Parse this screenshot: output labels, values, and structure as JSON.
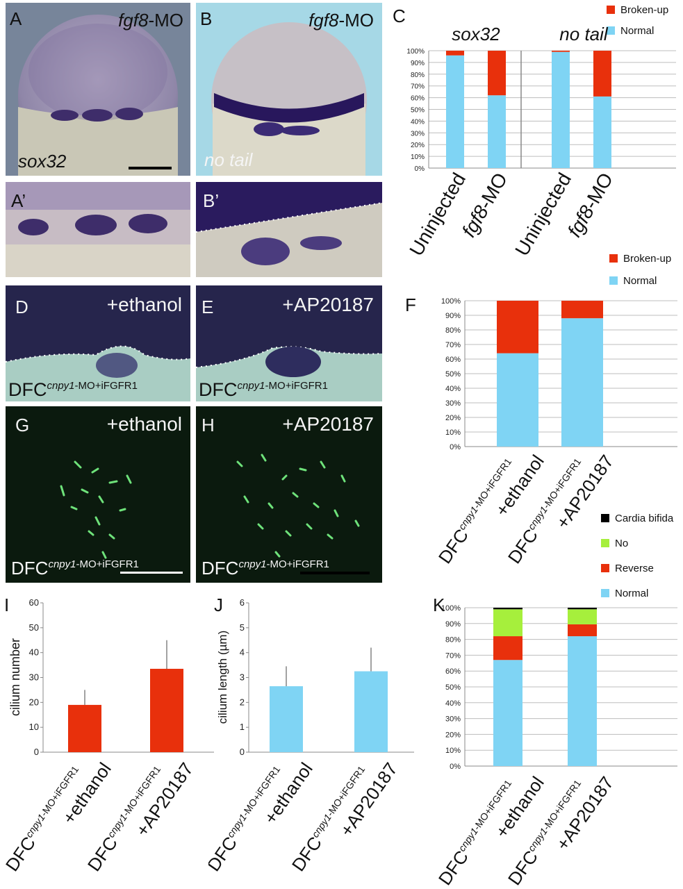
{
  "panels": {
    "A": {
      "label": "A",
      "gene_top": "fgf8",
      "suffix_top": "-MO",
      "gene_bottom": "sox32"
    },
    "B": {
      "label": "B",
      "gene_top": "fgf8",
      "suffix_top": "-MO",
      "gene_bottom": "no tail"
    },
    "A_prime": {
      "label": "A’"
    },
    "B_prime": {
      "label": "B’"
    },
    "D": {
      "label": "D",
      "treatment": "+ethanol",
      "dfc": "DFC",
      "dfc_sup": "cnpy1",
      "dfc_suffix": "-MO+iFGFR1"
    },
    "E": {
      "label": "E",
      "treatment": "+AP20187",
      "dfc": "DFC",
      "dfc_sup": "cnpy1",
      "dfc_suffix": "-MO+iFGFR1"
    },
    "G": {
      "label": "G",
      "treatment": "+ethanol",
      "dfc": "DFC",
      "dfc_sup": "cnpy1",
      "dfc_suffix": "-MO+iFGFR1"
    },
    "H": {
      "label": "H",
      "treatment": "+AP20187",
      "dfc": "DFC",
      "dfc_sup": "cnpy1",
      "dfc_suffix": "-MO+iFGFR1"
    }
  },
  "colors": {
    "red": "#e8300c",
    "blue": "#7fd4f4",
    "green": "#a6ef3c",
    "black": "#000000"
  },
  "chart_data": [
    {
      "panel": "C",
      "type": "bar",
      "stacked": true,
      "group_titles": [
        "sox32",
        "no tail"
      ],
      "categories": [
        "Uninjected",
        "fgf8-MO",
        "Uninjected",
        "fgf8-MO"
      ],
      "series": [
        {
          "name": "Normal",
          "color": "#7fd4f4",
          "values": [
            96,
            62,
            99,
            61
          ]
        },
        {
          "name": "Broken-up",
          "color": "#e8300c",
          "values": [
            4,
            38,
            1,
            39
          ]
        }
      ],
      "ylim": [
        0,
        100
      ],
      "yticks": [
        "0%",
        "10%",
        "20%",
        "30%",
        "40%",
        "50%",
        "60%",
        "70%",
        "80%",
        "90%",
        "100%"
      ],
      "legend_position": "top-right",
      "grid": true
    },
    {
      "panel": "F",
      "type": "bar",
      "stacked": true,
      "categories": [
        {
          "dfc": "DFC",
          "sup": "cnpy1-MO+iFGFR1",
          "treatment": "+ethanol"
        },
        {
          "dfc": "DFC",
          "sup": "cnpy1-MO+iFGFR1",
          "treatment": "+AP20187"
        }
      ],
      "series": [
        {
          "name": "Normal",
          "color": "#7fd4f4",
          "values": [
            64,
            88
          ]
        },
        {
          "name": "Broken-up",
          "color": "#e8300c",
          "values": [
            36,
            12
          ]
        }
      ],
      "ylim": [
        0,
        100
      ],
      "yticks": [
        "0%",
        "10%",
        "20%",
        "30%",
        "40%",
        "50%",
        "60%",
        "70%",
        "80%",
        "90%",
        "100%"
      ],
      "legend_position": "top-left",
      "grid": true
    },
    {
      "panel": "I",
      "type": "bar",
      "ylabel": "cilium number",
      "categories": [
        {
          "dfc": "DFC",
          "sup": "cnpy1-MO+iFGFR1",
          "treatment": "+ethanol"
        },
        {
          "dfc": "DFC",
          "sup": "cnpy1-MO+iFGFR1",
          "treatment": "+AP20187"
        }
      ],
      "values": [
        19,
        33.5
      ],
      "errors": [
        6,
        11.5
      ],
      "color": "#e8300c",
      "ylim": [
        0,
        60
      ],
      "yticks": [
        "0",
        "10",
        "20",
        "30",
        "40",
        "50",
        "60"
      ],
      "grid": false
    },
    {
      "panel": "J",
      "type": "bar",
      "ylabel": "cilium length (µm)",
      "categories": [
        {
          "dfc": "DFC",
          "sup": "cnpy1-MO+iFGFR1",
          "treatment": "+ethanol"
        },
        {
          "dfc": "DFC",
          "sup": "cnpy1-MO+iFGFR1",
          "treatment": "+AP20187"
        }
      ],
      "values": [
        2.65,
        3.25
      ],
      "errors": [
        0.8,
        0.95
      ],
      "color": "#7fd4f4",
      "ylim": [
        0,
        6
      ],
      "yticks": [
        "0",
        "1",
        "2",
        "3",
        "4",
        "5",
        "6"
      ],
      "grid": false
    },
    {
      "panel": "K",
      "type": "bar",
      "stacked": true,
      "categories": [
        {
          "dfc": "DFC",
          "sup": "cnpy1-MO+iFGFR1",
          "treatment": "+ethanol"
        },
        {
          "dfc": "DFC",
          "sup": "cnpy1-MO+iFGFR1",
          "treatment": "+AP20187"
        }
      ],
      "series": [
        {
          "name": "Normal",
          "color": "#7fd4f4",
          "values": [
            67,
            82
          ]
        },
        {
          "name": "Reverse",
          "color": "#e8300c",
          "values": [
            15,
            7.5
          ]
        },
        {
          "name": "No",
          "color": "#a6ef3c",
          "values": [
            17,
            9.5
          ]
        },
        {
          "name": "Cardia bifida",
          "color": "#000000",
          "values": [
            1,
            1
          ]
        }
      ],
      "ylim": [
        0,
        100
      ],
      "yticks": [
        "0%",
        "10%",
        "20%",
        "30%",
        "40%",
        "50%",
        "60%",
        "70%",
        "80%",
        "90%",
        "100%"
      ],
      "legend_position": "top-left",
      "grid": true
    }
  ]
}
